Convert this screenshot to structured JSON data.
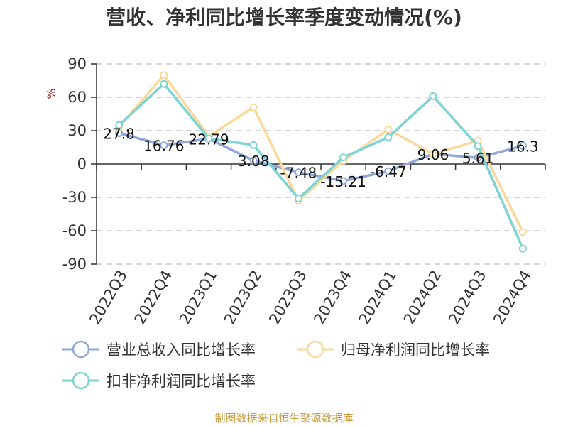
{
  "chart_data": {
    "type": "line",
    "title": "营收、净利同比增长率季度变动情况(%)",
    "unit": "%",
    "categories": [
      "2022Q3",
      "2022Q4",
      "2023Q1",
      "2023Q2",
      "2023Q3",
      "2023Q4",
      "2024Q1",
      "2024Q2",
      "2024Q3",
      "2024Q4"
    ],
    "ylim": [
      -90,
      90
    ],
    "yticks": [
      90,
      60,
      30,
      0,
      -30,
      -60,
      -90
    ],
    "grid": true,
    "legend_position": "bottom-left",
    "series": [
      {
        "name": "营业总收入同比增长率",
        "color": "#8fa8d8",
        "labeled": true,
        "values": [
          27.8,
          16.76,
          22.79,
          3.08,
          -7.48,
          -15.21,
          -6.47,
          9.06,
          5.61,
          16.3
        ]
      },
      {
        "name": "归母净利润同比增长率",
        "color": "#f8d99a",
        "labeled": false,
        "values": [
          33,
          80,
          25,
          51,
          -33,
          3,
          31,
          9,
          21,
          -61
        ]
      },
      {
        "name": "扣非净利润同比增长率",
        "color": "#7fd3d3",
        "labeled": false,
        "values": [
          35,
          72,
          23,
          17,
          -31,
          6,
          24,
          61,
          16,
          -76
        ]
      }
    ]
  },
  "source_text": "制图数据来自恒生聚源数据库"
}
